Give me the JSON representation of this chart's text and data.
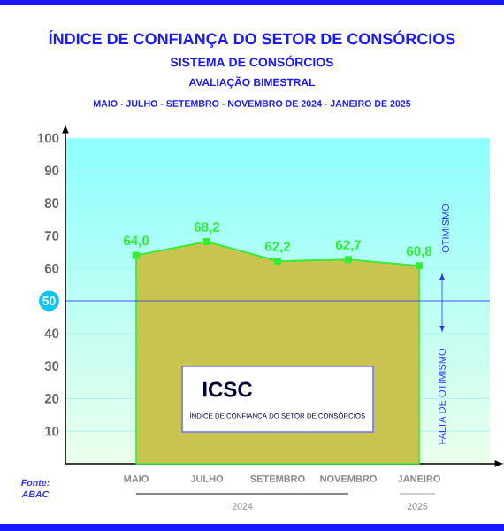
{
  "chart_data": {
    "type": "area",
    "title": "ÍNDICE DE CONFIANÇA DO SETOR DE CONSÓRCIOS",
    "subtitle": "SISTEMA DE CONSÓRCIOS",
    "categories": [
      "MAIO",
      "JULHO",
      "SETEMBRO",
      "NOVEMBRO",
      "JANEIRO"
    ],
    "series": [
      {
        "color": "#33ee33",
        "values": [
          64.0,
          68.2,
          62.2,
          62.7,
          60.8
        ],
        "value_labels": [
          "64,0",
          "68,2",
          "62,2",
          "62,7",
          "60,8"
        ]
      }
    ],
    "ylim": [
      0,
      100
    ],
    "yticks": [
      10,
      20,
      30,
      40,
      50,
      60,
      70,
      80,
      90,
      100
    ],
    "grid": "y",
    "marker": "square",
    "ref_lines": [
      {
        "axis": "y",
        "value": 50,
        "color": "#3333ff"
      }
    ],
    "annotations": [
      "AVALIAÇÃO BIMESTRAL",
      "MAIO - JULHO - SETEMBRO - NOVEMBRO DE 2024 - JANEIRO DE 2025",
      "OTIMISMO",
      "FALTA DE OTIMISMO",
      "ICSC",
      "ÍNDICE DE CONFIANÇA DO SETOR DE CONSÓRCIOS",
      "Fonte: ABAC",
      "2024",
      "2025"
    ]
  }
}
